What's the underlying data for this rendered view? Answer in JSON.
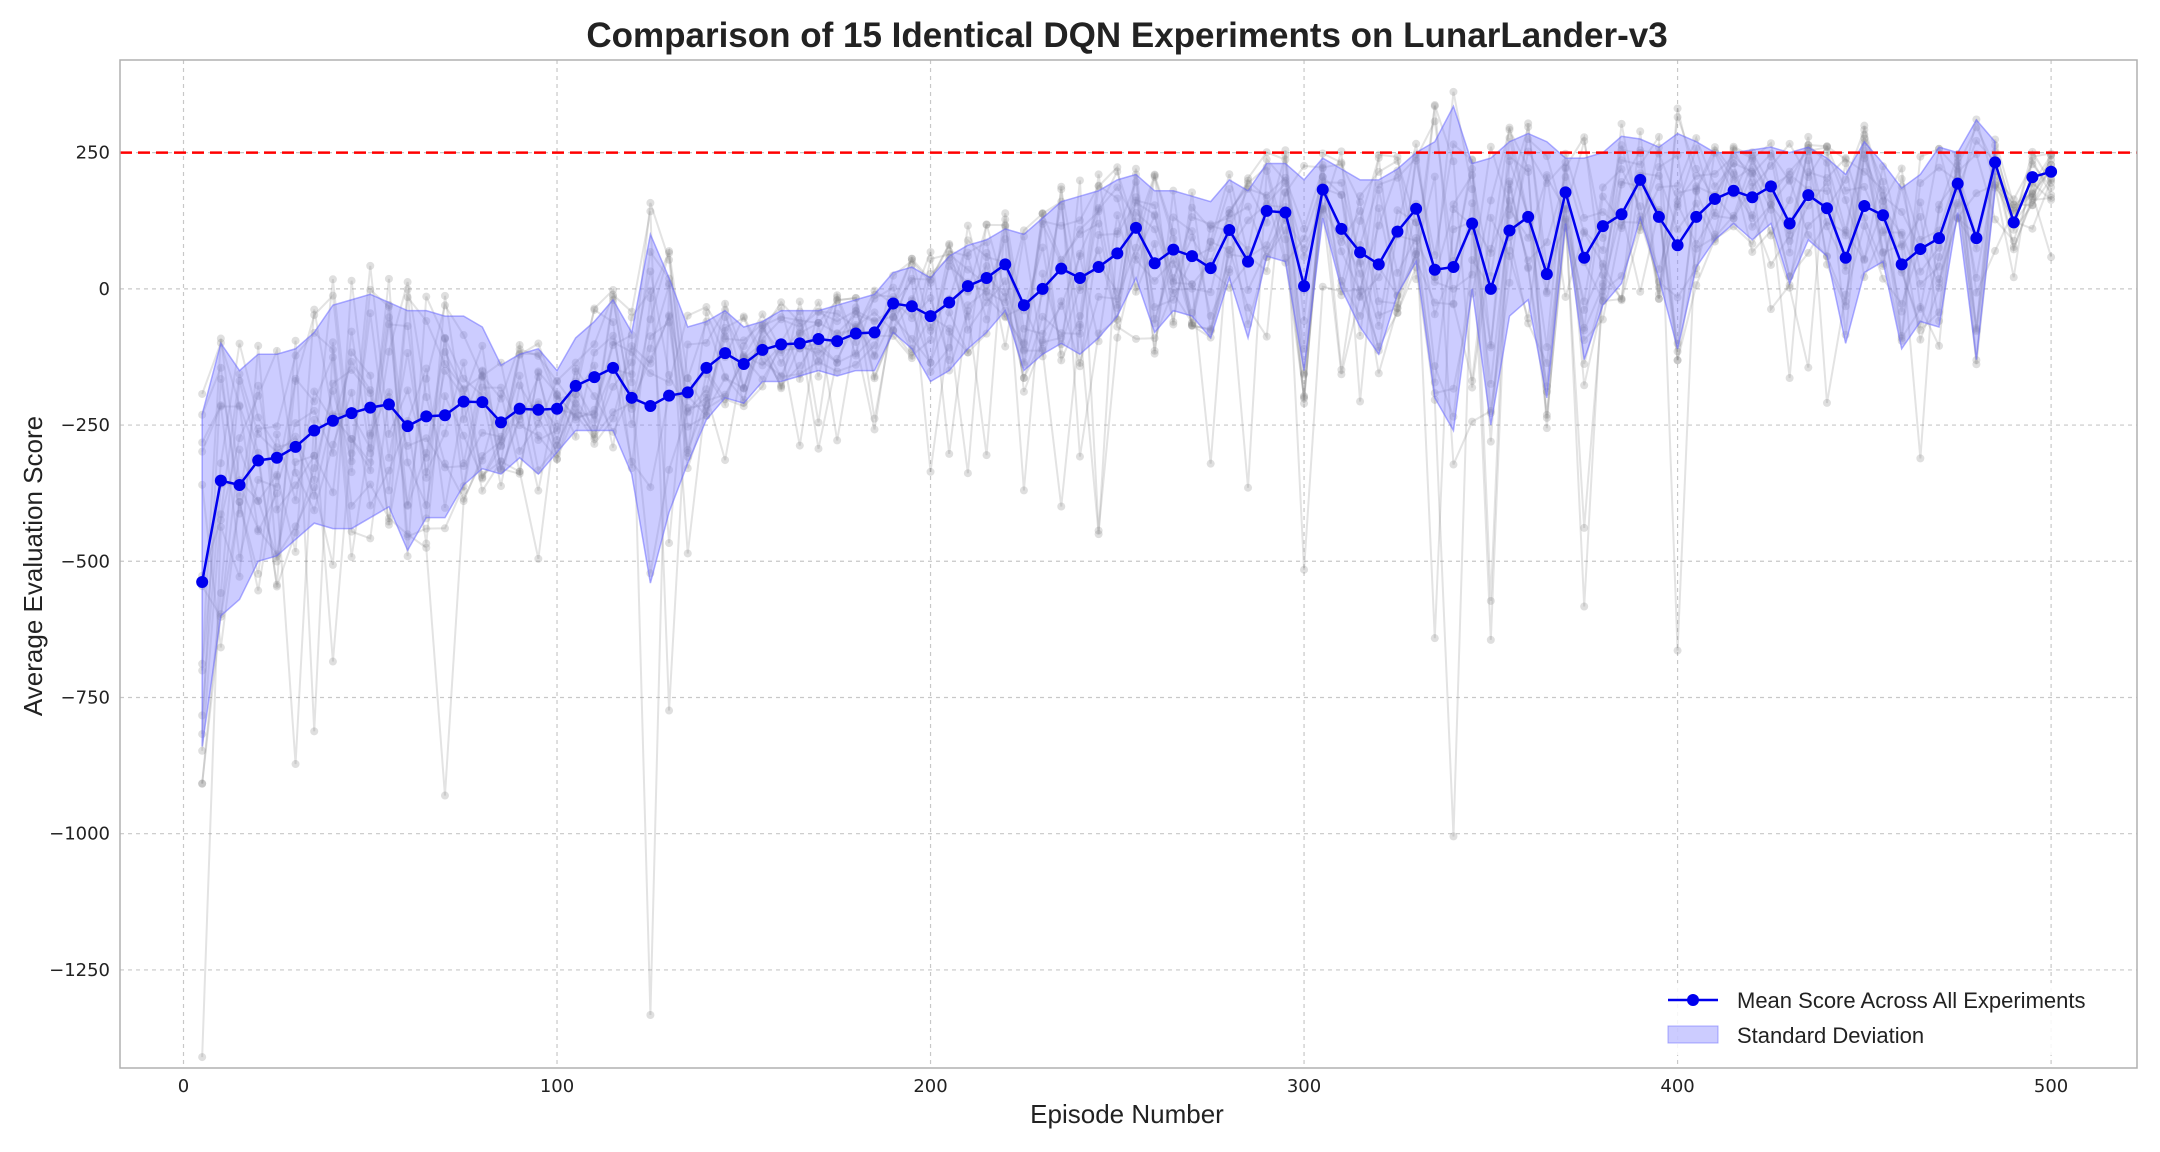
{
  "chart_data": {
    "type": "line",
    "title": "Comparison of 15 Identical DQN Experiments on LunarLander-v3",
    "xlabel": "Episode Number",
    "ylabel": "Average Evaluation Score",
    "xlim": [
      -17,
      523
    ],
    "ylim": [
      -1430,
      420
    ],
    "xticks": [
      0,
      100,
      200,
      300,
      400,
      500
    ],
    "yticks": [
      250,
      0,
      -250,
      -500,
      -750,
      -1000,
      -1250
    ],
    "ytick_labels": [
      "250",
      "0",
      "−250",
      "−500",
      "−750",
      "−1000",
      "−1250"
    ],
    "grid": true,
    "legend_position": "lower-right",
    "threshold": {
      "y": 250,
      "color": "#ff0000",
      "style": "dashed"
    },
    "x": [
      5,
      10,
      15,
      20,
      25,
      30,
      35,
      40,
      45,
      50,
      55,
      60,
      65,
      70,
      75,
      80,
      85,
      90,
      95,
      100,
      105,
      110,
      115,
      120,
      125,
      130,
      135,
      140,
      145,
      150,
      155,
      160,
      165,
      170,
      175,
      180,
      185,
      190,
      195,
      200,
      205,
      210,
      215,
      220,
      225,
      230,
      235,
      240,
      245,
      250,
      255,
      260,
      265,
      270,
      275,
      280,
      285,
      290,
      295,
      300,
      305,
      310,
      315,
      320,
      325,
      330,
      335,
      340,
      345,
      350,
      355,
      360,
      365,
      370,
      375,
      380,
      385,
      390,
      395,
      400,
      405,
      410,
      415,
      420,
      425,
      430,
      435,
      440,
      445,
      450,
      455,
      460,
      465,
      470,
      475,
      480,
      485,
      490,
      495,
      500
    ],
    "series": [
      {
        "name": "Mean Score Across All Experiments",
        "color": "#0000ee",
        "values": [
          -538,
          -352,
          -360,
          -315,
          -310,
          -290,
          -260,
          -242,
          -228,
          -218,
          -212,
          -252,
          -234,
          -232,
          -207,
          -208,
          -245,
          -220,
          -222,
          -220,
          -178,
          -162,
          -145,
          -200,
          -215,
          -196,
          -190,
          -145,
          -118,
          -138,
          -112,
          -102,
          -100,
          -92,
          -96,
          -82,
          -80,
          -27,
          -32,
          -50,
          -25,
          5,
          20,
          45,
          -30,
          0,
          37,
          20,
          40,
          65,
          112,
          47,
          72,
          60,
          38,
          108,
          50,
          143,
          140,
          5,
          182,
          110,
          67,
          45,
          105,
          147,
          35,
          40,
          120,
          0,
          107,
          132,
          27,
          177,
          57,
          115,
          137,
          200,
          132,
          80,
          132,
          165,
          180,
          168,
          188,
          120,
          172,
          148,
          57,
          152,
          135,
          45,
          73,
          93,
          193,
          93,
          232,
          122,
          205,
          215
        ]
      },
      {
        "name": "Standard Deviation",
        "color": "#8080ff",
        "upper": [
          -230,
          -100,
          -150,
          -120,
          -120,
          -110,
          -80,
          -30,
          -20,
          -10,
          -25,
          -40,
          -40,
          -50,
          -50,
          -70,
          -140,
          -120,
          -110,
          -150,
          -90,
          -60,
          -20,
          -80,
          100,
          20,
          -70,
          -60,
          -40,
          -70,
          -60,
          -40,
          -40,
          -40,
          -30,
          -20,
          -10,
          30,
          40,
          20,
          60,
          80,
          90,
          110,
          100,
          130,
          160,
          170,
          180,
          200,
          210,
          180,
          180,
          170,
          160,
          200,
          180,
          230,
          230,
          200,
          240,
          220,
          200,
          200,
          220,
          250,
          270,
          335,
          230,
          240,
          270,
          285,
          270,
          240,
          240,
          250,
          280,
          275,
          260,
          285,
          270,
          250,
          250,
          255,
          260,
          250,
          260,
          240,
          210,
          270,
          230,
          185,
          210,
          260,
          250,
          310,
          270,
          null,
          null,
          null
        ],
        "lower": [
          -840,
          -600,
          -570,
          -500,
          -490,
          -460,
          -430,
          -440,
          -440,
          -420,
          -400,
          -480,
          -420,
          -420,
          -360,
          -330,
          -340,
          -310,
          -340,
          -300,
          -260,
          -260,
          -260,
          -340,
          -540,
          -410,
          -320,
          -240,
          -200,
          -210,
          -170,
          -170,
          -160,
          -150,
          -160,
          -150,
          -150,
          -80,
          -110,
          -170,
          -150,
          -110,
          -80,
          -40,
          -150,
          -120,
          -100,
          -120,
          -90,
          -50,
          20,
          -80,
          -40,
          -50,
          -90,
          20,
          -90,
          60,
          50,
          -150,
          130,
          0,
          -70,
          -120,
          -10,
          50,
          -200,
          -260,
          0,
          -250,
          -50,
          -20,
          -200,
          120,
          -130,
          -30,
          10,
          130,
          20,
          -110,
          40,
          90,
          120,
          90,
          120,
          10,
          90,
          60,
          -100,
          30,
          50,
          -110,
          -60,
          -70,
          140,
          -130,
          180,
          null,
          null,
          null
        ]
      }
    ],
    "legend": [
      {
        "label": "Mean Score Across All Experiments",
        "kind": "line-marker",
        "color": "#0000ee"
      },
      {
        "label": "Standard Deviation",
        "kind": "patch",
        "color": "#8080ff"
      }
    ],
    "background_runs_note_color": "#808080"
  }
}
